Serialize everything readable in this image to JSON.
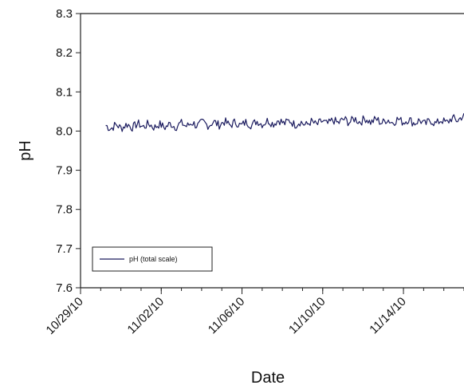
{
  "chart_data": {
    "type": "line",
    "xlabel": "Date",
    "ylabel": "pH",
    "ylim": [
      7.6,
      8.3
    ],
    "yticks": [
      7.6,
      7.7,
      7.8,
      7.9,
      8.0,
      8.1,
      8.2,
      8.3
    ],
    "ytick_labels": [
      "7.6",
      "7.7",
      "7.8",
      "7.9",
      "8.0",
      "8.1",
      "8.2",
      "8.3"
    ],
    "xlim": [
      "2010-10-29",
      "2010-11-17"
    ],
    "xticks": [
      "2010-10-29",
      "2010-11-02",
      "2010-11-06",
      "2010-11-10",
      "2010-11-14"
    ],
    "xtick_labels": [
      "10/29/10",
      "11/02/10",
      "11/06/10",
      "11/10/10",
      "11/14/10"
    ],
    "grid": false,
    "legend_position": "bottom-left",
    "line_color": "#1a1a5e",
    "series": [
      {
        "name": "pH (total scale)",
        "x": [
          "2010-10-30",
          "2010-10-31",
          "2010-11-01",
          "2010-11-02",
          "2010-11-03",
          "2010-11-04",
          "2010-11-05",
          "2010-11-06",
          "2010-11-07",
          "2010-11-08",
          "2010-11-09",
          "2010-11-10",
          "2010-11-11",
          "2010-11-12",
          "2010-11-13",
          "2010-11-14",
          "2010-11-15",
          "2010-11-16",
          "2010-11-17"
        ],
        "values": [
          8.01,
          8.012,
          8.015,
          8.013,
          8.016,
          8.018,
          8.02,
          8.018,
          8.022,
          8.024,
          8.019,
          8.021,
          8.026,
          8.028,
          8.025,
          8.027,
          8.022,
          8.024,
          8.035
        ]
      }
    ]
  }
}
